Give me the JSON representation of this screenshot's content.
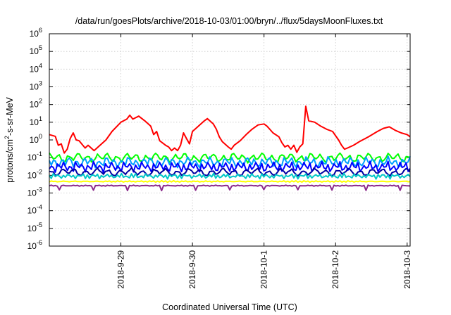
{
  "chart_data": {
    "type": "line",
    "title": "/data/run/goesPlots/archive/2018-10-03/01:00/bryn/../flux/5daysMoonFluxes.txt",
    "xlabel": "Coordinated Universal Time (UTC)",
    "ylabel": "protons/cm²-s-sr-MeV",
    "ylabel_parts": {
      "before": "protons/cm",
      "sup": "2",
      "after": "-s-sr-MeV"
    },
    "yscale": "log",
    "ylim_exp": [
      -6,
      6
    ],
    "y_ticks": [
      {
        "base": "10",
        "exp": "-6"
      },
      {
        "base": "10",
        "exp": "-5"
      },
      {
        "base": "10",
        "exp": "-4"
      },
      {
        "base": "10",
        "exp": "-3"
      },
      {
        "base": "10",
        "exp": "-2"
      },
      {
        "base": "10",
        "exp": "-1"
      },
      {
        "base": "10",
        "exp": "0"
      },
      {
        "base": "10",
        "exp": "1"
      },
      {
        "base": "10",
        "exp": "2"
      },
      {
        "base": "10",
        "exp": "3"
      },
      {
        "base": "10",
        "exp": "4"
      },
      {
        "base": "10",
        "exp": "5"
      },
      {
        "base": "10",
        "exp": "6"
      }
    ],
    "x_ticks": [
      "2018-9-29",
      "2018-9-30",
      "2018-10-1",
      "2018-10-2",
      "2018-10-3"
    ],
    "xlim": [
      "2018-09-28T00:00",
      "2018-10-03T01:00"
    ],
    "grid": true,
    "series": [
      {
        "color": "#ff0000",
        "points": [
          [
            "2018-09-28T00:00",
            2.0
          ],
          [
            "2018-09-28T02:00",
            1.6
          ],
          [
            "2018-09-28T03:00",
            0.5
          ],
          [
            "2018-09-28T04:00",
            0.6
          ],
          [
            "2018-09-28T05:00",
            0.18
          ],
          [
            "2018-09-28T06:00",
            0.3
          ],
          [
            "2018-09-28T07:00",
            1.2
          ],
          [
            "2018-09-28T08:00",
            2.5
          ],
          [
            "2018-09-28T09:00",
            1.0
          ],
          [
            "2018-09-28T10:00",
            0.9
          ],
          [
            "2018-09-28T12:00",
            0.35
          ],
          [
            "2018-09-28T13:00",
            0.5
          ],
          [
            "2018-09-28T15:00",
            0.25
          ],
          [
            "2018-09-28T17:00",
            0.5
          ],
          [
            "2018-09-28T19:00",
            1.0
          ],
          [
            "2018-09-28T21:00",
            3.0
          ],
          [
            "2018-09-29T00:00",
            10.0
          ],
          [
            "2018-09-29T02:00",
            15.0
          ],
          [
            "2018-09-29T03:00",
            25.0
          ],
          [
            "2018-09-29T04:00",
            15.0
          ],
          [
            "2018-09-29T06:00",
            22.0
          ],
          [
            "2018-09-29T08:00",
            12.0
          ],
          [
            "2018-09-29T10:00",
            6.0
          ],
          [
            "2018-09-29T11:00",
            2.0
          ],
          [
            "2018-09-29T12:00",
            3.0
          ],
          [
            "2018-09-29T13:00",
            0.9
          ],
          [
            "2018-09-29T15:00",
            0.5
          ],
          [
            "2018-09-29T16:00",
            0.4
          ],
          [
            "2018-09-29T17:00",
            0.25
          ],
          [
            "2018-09-29T18:00",
            0.35
          ],
          [
            "2018-09-29T19:00",
            0.25
          ],
          [
            "2018-09-29T20:00",
            0.5
          ],
          [
            "2018-09-29T21:00",
            2.5
          ],
          [
            "2018-09-29T22:00",
            1.2
          ],
          [
            "2018-09-29T23:00",
            0.6
          ],
          [
            "2018-09-30T00:00",
            3.0
          ],
          [
            "2018-09-30T02:00",
            6.0
          ],
          [
            "2018-09-30T04:00",
            12.0
          ],
          [
            "2018-09-30T05:00",
            16.0
          ],
          [
            "2018-09-30T07:00",
            8.0
          ],
          [
            "2018-09-30T08:00",
            4.0
          ],
          [
            "2018-09-30T09:00",
            1.5
          ],
          [
            "2018-09-30T10:00",
            0.8
          ],
          [
            "2018-09-30T12:00",
            0.4
          ],
          [
            "2018-09-30T13:00",
            0.3
          ],
          [
            "2018-09-30T14:00",
            0.5
          ],
          [
            "2018-09-30T16:00",
            0.9
          ],
          [
            "2018-09-30T18:00",
            2.0
          ],
          [
            "2018-09-30T20:00",
            4.0
          ],
          [
            "2018-09-30T22:00",
            7.0
          ],
          [
            "2018-10-01T00:00",
            8.0
          ],
          [
            "2018-10-01T01:00",
            6.0
          ],
          [
            "2018-10-01T03:00",
            2.5
          ],
          [
            "2018-10-01T05:00",
            1.5
          ],
          [
            "2018-10-01T06:00",
            0.7
          ],
          [
            "2018-10-01T07:00",
            0.4
          ],
          [
            "2018-10-01T08:00",
            0.5
          ],
          [
            "2018-10-01T09:00",
            0.3
          ],
          [
            "2018-10-01T10:00",
            0.5
          ],
          [
            "2018-10-01T11:00",
            0.2
          ],
          [
            "2018-10-01T12:00",
            0.4
          ],
          [
            "2018-10-01T13:00",
            0.6
          ],
          [
            "2018-10-01T14:00",
            80.0
          ],
          [
            "2018-10-01T15:00",
            12.0
          ],
          [
            "2018-10-01T17:00",
            10.0
          ],
          [
            "2018-10-01T19:00",
            6.0
          ],
          [
            "2018-10-01T21:00",
            4.0
          ],
          [
            "2018-10-01T23:00",
            3.0
          ],
          [
            "2018-10-02T01:00",
            1.0
          ],
          [
            "2018-10-02T02:00",
            0.5
          ],
          [
            "2018-10-02T03:00",
            0.3
          ],
          [
            "2018-10-02T04:00",
            0.35
          ],
          [
            "2018-10-02T06:00",
            0.5
          ],
          [
            "2018-10-02T08:00",
            0.8
          ],
          [
            "2018-10-02T11:00",
            1.5
          ],
          [
            "2018-10-02T14:00",
            3.0
          ],
          [
            "2018-10-02T16:00",
            4.5
          ],
          [
            "2018-10-02T18:00",
            5.5
          ],
          [
            "2018-10-02T20:00",
            3.5
          ],
          [
            "2018-10-02T22:00",
            2.5
          ],
          [
            "2018-10-03T00:00",
            2.0
          ],
          [
            "2018-10-03T01:00",
            1.5
          ]
        ]
      },
      {
        "color": "#00ff00",
        "base": 0.1,
        "amp": 0.6,
        "freq": 1.3
      },
      {
        "color": "#00a0ff",
        "base": 0.055,
        "amp": 0.7,
        "freq": 1.7
      },
      {
        "color": "#0000ff",
        "base": 0.03,
        "amp": 0.7,
        "freq": 2.1
      },
      {
        "color": "#0000a0",
        "base": 0.015,
        "amp": 0.5,
        "freq": 1.1
      },
      {
        "color": "#00c8c8",
        "base": 0.009,
        "amp": 0.35,
        "freq": 2.6
      },
      {
        "color": "#ffff00",
        "base": 0.0045,
        "amp": 0.1,
        "freq": 3.1
      },
      {
        "color": "#8b2a8b",
        "base": 0.0026,
        "amp": 0.08,
        "freq": 2.9,
        "dips": true
      }
    ]
  }
}
